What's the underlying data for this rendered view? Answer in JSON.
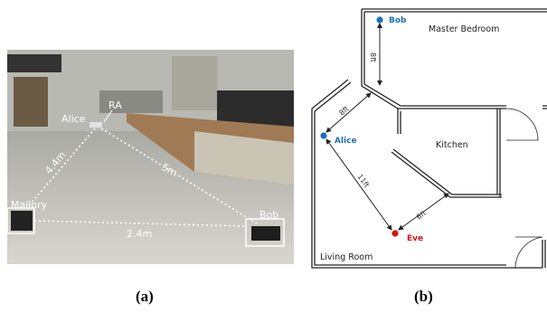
{
  "panel_a": {
    "labels": {
      "ra": "RA",
      "alice": "Alice",
      "mallory": "Mallory",
      "bob": "Bob"
    },
    "distances": {
      "alice_mallory": "4.4m",
      "alice_bob": "5m",
      "mallory_bob": "2.4m"
    },
    "caption": "(a)"
  },
  "panel_b": {
    "rooms": {
      "master": "Master Bedroom",
      "kitchen": "Kitchen",
      "living": "Living Room"
    },
    "people": {
      "bob": "Bob",
      "alice": "Alice",
      "eve": "Eve"
    },
    "distances": {
      "bob": "8ft",
      "alice_wall": "8ft",
      "alice_eve": "11ft",
      "eve_wall": "6ft"
    },
    "caption": "(b)"
  }
}
